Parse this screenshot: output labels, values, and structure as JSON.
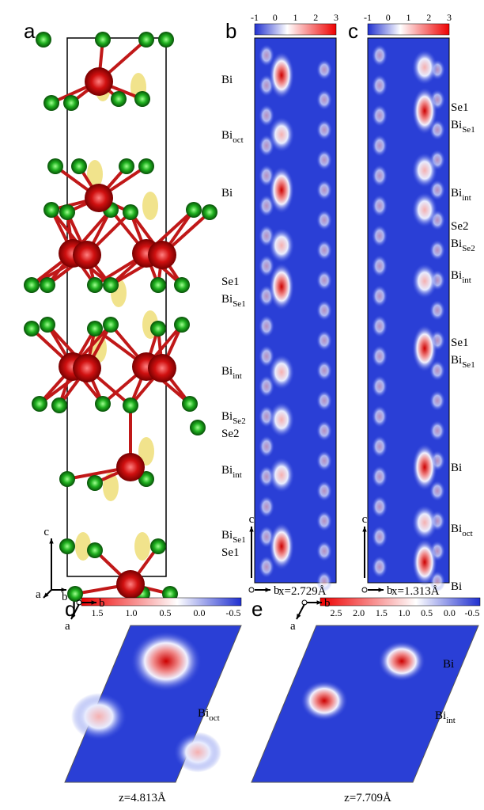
{
  "panels": {
    "a": {
      "label": "a",
      "axes": [
        "c",
        "a",
        "b"
      ]
    },
    "b": {
      "label": "b",
      "colorbar_ticks": [
        "-1",
        "0",
        "1",
        "2",
        "3"
      ],
      "atom_labels": [
        [
          {
            "text": "Bi"
          }
        ],
        [
          {
            "text": "Bi",
            "sub": "oct"
          }
        ],
        [
          {
            "text": "Bi"
          }
        ],
        [
          {
            "text": "Se1"
          },
          {
            "text": "Bi",
            "sub": "Se1"
          }
        ],
        [
          {
            "text": "Bi",
            "sub": "int"
          }
        ],
        [
          {
            "text": "Bi",
            "sub": "Se2"
          },
          {
            "text": "Se2"
          }
        ],
        [
          {
            "text": "Bi",
            "sub": "int"
          }
        ],
        [
          {
            "text": "Bi",
            "sub": "Se1"
          },
          {
            "text": "Se1"
          }
        ]
      ],
      "axes": [
        "c",
        "b"
      ],
      "caption": "x=2.729Å"
    },
    "c": {
      "label": "c",
      "colorbar_ticks": [
        "-1",
        "0",
        "1",
        "2",
        "3"
      ],
      "atom_labels": [
        [
          {
            "text": "Se1"
          },
          {
            "text": "Bi",
            "sub": "Se1"
          }
        ],
        [
          {
            "text": "Bi",
            "sub": "int"
          }
        ],
        [
          {
            "text": "Se2"
          },
          {
            "text": "Bi",
            "sub": "Se2"
          }
        ],
        [
          {
            "text": "Bi",
            "sub": "int"
          }
        ],
        [
          {
            "text": "Se1"
          },
          {
            "text": "Bi",
            "sub": "Se1"
          }
        ],
        [
          {
            "text": "Bi"
          }
        ],
        [
          {
            "text": "Bi",
            "sub": "oct"
          }
        ],
        [
          {
            "text": "Bi"
          }
        ]
      ],
      "axes": [
        "c",
        "b"
      ],
      "caption": "x=1.313Å"
    },
    "d": {
      "label": "d",
      "colorbar_ticks": [
        "1.5",
        "1.0",
        "0.5",
        "0.0",
        "-0.5"
      ],
      "atom_labels": [
        [
          {
            "text": "Bi",
            "sub": "oct"
          }
        ]
      ],
      "axes": [
        "b",
        "a"
      ],
      "caption": "z=4.813Å"
    },
    "e": {
      "label": "e",
      "colorbar_ticks": [
        "2.5",
        "2.0",
        "1.5",
        "1.0",
        "0.5",
        "0.0",
        "-0.5"
      ],
      "atom_labels": [
        [
          {
            "text": "Bi"
          }
        ],
        [
          {
            "text": "Bi",
            "sub": "int"
          }
        ]
      ],
      "axes": [
        "b",
        "a"
      ],
      "caption": "z=7.709Å"
    }
  }
}
